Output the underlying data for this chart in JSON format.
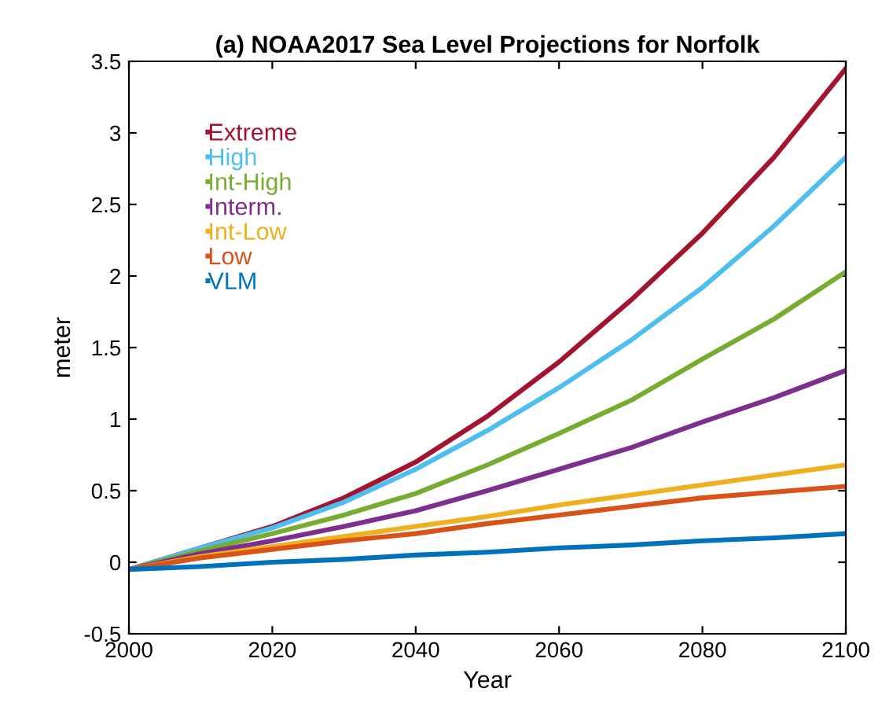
{
  "chart_data": {
    "type": "line",
    "title": "(a) NOAA2017 Sea Level Projections for Norfolk",
    "xlabel": "Year",
    "ylabel": "meter",
    "x": [
      2000,
      2010,
      2020,
      2030,
      2040,
      2050,
      2060,
      2070,
      2080,
      2090,
      2100
    ],
    "xlim": [
      2000,
      2100
    ],
    "xticks": [
      2000,
      2020,
      2040,
      2060,
      2080,
      2100
    ],
    "ylim": [
      -0.5,
      3.5
    ],
    "yticks": [
      -0.5,
      0,
      0.5,
      1,
      1.5,
      2,
      2.5,
      3,
      3.5
    ],
    "legend": "top left",
    "grid": false,
    "marker": "none",
    "line_style": "solid",
    "series": [
      {
        "name": "Extreme",
        "color": "#a2142f",
        "values": [
          -0.05,
          0.1,
          0.25,
          0.45,
          0.7,
          1.02,
          1.4,
          1.83,
          2.3,
          2.83,
          3.45
        ]
      },
      {
        "name": "High",
        "color": "#4dbeee",
        "values": [
          -0.05,
          0.1,
          0.24,
          0.42,
          0.65,
          0.92,
          1.22,
          1.55,
          1.92,
          2.35,
          2.83
        ]
      },
      {
        "name": "Int-High",
        "color": "#77ac30",
        "values": [
          -0.05,
          0.08,
          0.2,
          0.33,
          0.48,
          0.68,
          0.9,
          1.13,
          1.42,
          1.7,
          2.03
        ]
      },
      {
        "name": "Interm.",
        "color": "#7e2f8e",
        "values": [
          -0.05,
          0.06,
          0.15,
          0.25,
          0.36,
          0.5,
          0.65,
          0.8,
          0.98,
          1.15,
          1.34
        ]
      },
      {
        "name": "Int-Low",
        "color": "#edb120",
        "values": [
          -0.05,
          0.04,
          0.11,
          0.18,
          0.25,
          0.32,
          0.4,
          0.47,
          0.54,
          0.61,
          0.68
        ]
      },
      {
        "name": "Low",
        "color": "#d95319",
        "values": [
          -0.05,
          0.03,
          0.09,
          0.15,
          0.2,
          0.27,
          0.33,
          0.39,
          0.45,
          0.49,
          0.53
        ]
      },
      {
        "name": "VLM",
        "color": "#0072bd",
        "values": [
          -0.05,
          -0.03,
          0.0,
          0.02,
          0.05,
          0.07,
          0.1,
          0.12,
          0.15,
          0.17,
          0.2
        ]
      }
    ]
  }
}
